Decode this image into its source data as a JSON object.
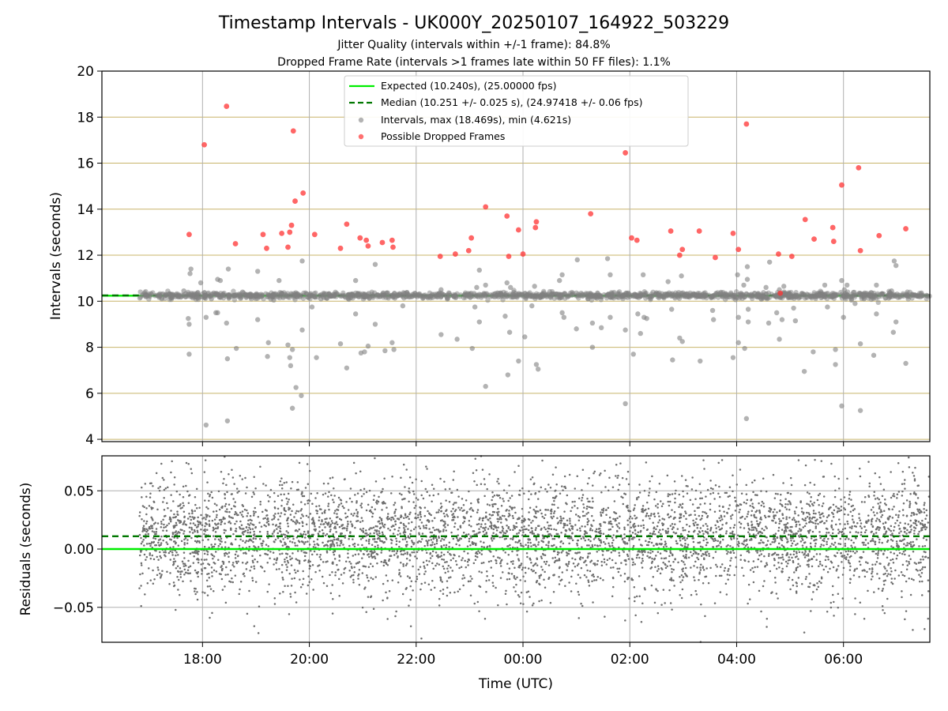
{
  "figure": {
    "title": "Timestamp Intervals - UK000Y_20250107_164922_503229",
    "subtitle_1": "Jitter Quality (intervals within +/-1 frame): 84.8%",
    "subtitle_2": "Dropped Frame Rate (intervals >1 frames late within 50 FF files): 1.1%"
  },
  "colors": {
    "expected": "#00ee00",
    "median": "#007700",
    "intervals": "#808080",
    "dropped": "#ff3333",
    "hgrid_top": "#c8b46a",
    "vgrid": "#b0b0b0"
  },
  "chart_data": [
    {
      "type": "scatter",
      "panel": "top",
      "ylabel": "Intervals (seconds)",
      "xlabel": "",
      "xlim": [
        "16:07",
        "07:37"
      ],
      "ylim": [
        3.9,
        20
      ],
      "yticks": [
        4,
        6,
        8,
        10,
        12,
        14,
        16,
        18,
        20
      ],
      "ytick_labels": [
        "4",
        "6",
        "8",
        "10",
        "12",
        "14",
        "16",
        "18",
        "20"
      ],
      "xticks": [
        "18:00",
        "20:00",
        "22:00",
        "00:00",
        "02:00",
        "04:00",
        "06:00"
      ],
      "grid": true,
      "legend_position": "upper-center",
      "legend": [
        {
          "label": "Expected (10.240s), (25.00000 fps)",
          "kind": "solid-line",
          "color": "#00ee00"
        },
        {
          "label": "Median (10.251 +/- 0.025 s), (24.97418 +/- 0.06 fps)",
          "kind": "dashed-line",
          "color": "#007700"
        },
        {
          "label": "Intervals, max (18.469s), min (4.621s)",
          "kind": "marker",
          "color": "#808080"
        },
        {
          "label": "Possible Dropped Frames",
          "kind": "marker",
          "color": "#ff3333"
        }
      ],
      "expected_interval": 10.24,
      "median_interval": 10.251,
      "series": [
        {
          "name": "Possible Dropped Frames",
          "points": [
            [
              "17:45",
              12.9
            ],
            [
              "18:02",
              16.8
            ],
            [
              "18:27",
              18.47
            ],
            [
              "18:37",
              12.5
            ],
            [
              "19:08",
              12.9
            ],
            [
              "19:12",
              12.3
            ],
            [
              "19:29",
              12.95
            ],
            [
              "19:36",
              12.35
            ],
            [
              "19:38",
              13.0
            ],
            [
              "19:40",
              13.3
            ],
            [
              "19:42",
              17.4
            ],
            [
              "19:44",
              14.35
            ],
            [
              "19:53",
              14.7
            ],
            [
              "20:06",
              12.9
            ],
            [
              "20:35",
              12.3
            ],
            [
              "20:42",
              13.35
            ],
            [
              "20:57",
              12.75
            ],
            [
              "21:04",
              12.65
            ],
            [
              "21:06",
              12.4
            ],
            [
              "21:22",
              12.55
            ],
            [
              "21:33",
              12.65
            ],
            [
              "21:34",
              12.35
            ],
            [
              "22:27",
              11.95
            ],
            [
              "22:44",
              12.05
            ],
            [
              "22:59",
              12.2
            ],
            [
              "23:02",
              12.75
            ],
            [
              "23:18",
              14.1
            ],
            [
              "23:42",
              13.7
            ],
            [
              "23:44",
              11.95
            ],
            [
              "23:55",
              13.1
            ],
            [
              "00:00",
              12.05
            ],
            [
              "00:14",
              13.2
            ],
            [
              "00:15",
              13.45
            ],
            [
              "01:16",
              13.8
            ],
            [
              "01:55",
              16.45
            ],
            [
              "02:02",
              12.75
            ],
            [
              "02:08",
              12.65
            ],
            [
              "02:46",
              13.05
            ],
            [
              "02:56",
              12.0
            ],
            [
              "02:59",
              12.25
            ],
            [
              "03:18",
              13.05
            ],
            [
              "03:36",
              11.9
            ],
            [
              "03:56",
              12.95
            ],
            [
              "04:02",
              12.25
            ],
            [
              "04:11",
              17.7
            ],
            [
              "04:47",
              12.05
            ],
            [
              "04:49",
              10.35
            ],
            [
              "05:02",
              11.95
            ],
            [
              "05:17",
              13.55
            ],
            [
              "05:27",
              12.7
            ],
            [
              "05:48",
              13.2
            ],
            [
              "05:49",
              12.6
            ],
            [
              "05:58",
              15.05
            ],
            [
              "06:17",
              15.8
            ],
            [
              "06:19",
              12.2
            ],
            [
              "06:40",
              12.85
            ],
            [
              "07:10",
              13.15
            ]
          ]
        },
        {
          "name": "Intervals",
          "points": [
            [
              "17:39",
              10.45
            ],
            [
              "17:44",
              9.25
            ],
            [
              "17:45",
              9.0
            ],
            [
              "17:46",
              11.2
            ],
            [
              "17:47",
              11.4
            ],
            [
              "17:48",
              10.2
            ],
            [
              "17:45",
              7.7
            ],
            [
              "17:55",
              10.15
            ],
            [
              "17:58",
              10.8
            ],
            [
              "18:04",
              9.3
            ],
            [
              "18:04",
              4.62
            ],
            [
              "18:10",
              10.1
            ],
            [
              "18:15",
              9.5
            ],
            [
              "18:17",
              9.5
            ],
            [
              "18:17",
              10.95
            ],
            [
              "18:20",
              10.9
            ],
            [
              "18:27",
              9.05
            ],
            [
              "18:28",
              7.5
            ],
            [
              "18:29",
              11.4
            ],
            [
              "18:28",
              4.8
            ],
            [
              "18:38",
              7.95
            ],
            [
              "18:45",
              10.4
            ],
            [
              "18:53",
              10.3
            ],
            [
              "19:02",
              11.3
            ],
            [
              "19:02",
              9.2
            ],
            [
              "19:13",
              7.6
            ],
            [
              "19:14",
              8.2
            ],
            [
              "19:20",
              10.05
            ],
            [
              "19:26",
              10.9
            ],
            [
              "19:36",
              8.1
            ],
            [
              "19:38",
              7.55
            ],
            [
              "19:39",
              7.2
            ],
            [
              "19:41",
              7.9
            ],
            [
              "19:41",
              5.35
            ],
            [
              "19:45",
              6.25
            ],
            [
              "19:51",
              5.9
            ],
            [
              "19:52",
              11.75
            ],
            [
              "19:52",
              8.75
            ],
            [
              "20:03",
              9.75
            ],
            [
              "20:08",
              7.55
            ],
            [
              "20:13",
              10.1
            ],
            [
              "20:35",
              8.15
            ],
            [
              "20:42",
              7.1
            ],
            [
              "20:52",
              10.9
            ],
            [
              "20:52",
              9.45
            ],
            [
              "20:58",
              7.75
            ],
            [
              "21:02",
              7.8
            ],
            [
              "21:06",
              8.05
            ],
            [
              "21:14",
              11.6
            ],
            [
              "21:14",
              9.0
            ],
            [
              "21:25",
              7.85
            ],
            [
              "21:33",
              8.2
            ],
            [
              "21:35",
              7.9
            ],
            [
              "21:45",
              9.8
            ],
            [
              "22:28",
              8.55
            ],
            [
              "22:28",
              10.5
            ],
            [
              "22:46",
              8.35
            ],
            [
              "22:55",
              10.3
            ],
            [
              "23:03",
              7.95
            ],
            [
              "23:06",
              9.75
            ],
            [
              "23:08",
              10.6
            ],
            [
              "23:11",
              11.35
            ],
            [
              "23:11",
              9.1
            ],
            [
              "23:18",
              6.3
            ],
            [
              "23:18",
              10.7
            ],
            [
              "23:40",
              9.35
            ],
            [
              "23:42",
              10.8
            ],
            [
              "23:43",
              6.8
            ],
            [
              "23:45",
              8.65
            ],
            [
              "23:46",
              10.6
            ],
            [
              "23:58",
              10.3
            ],
            [
              "23:55",
              7.4
            ],
            [
              "00:02",
              8.45
            ],
            [
              "00:10",
              9.8
            ],
            [
              "00:13",
              10.65
            ],
            [
              "00:15",
              7.25
            ],
            [
              "00:17",
              7.05
            ],
            [
              "00:41",
              10.9
            ],
            [
              "00:44",
              11.15
            ],
            [
              "00:44",
              9.5
            ],
            [
              "00:46",
              9.3
            ],
            [
              "01:00",
              8.8
            ],
            [
              "01:01",
              11.8
            ],
            [
              "01:13",
              10.1
            ],
            [
              "01:18",
              9.05
            ],
            [
              "01:18",
              8.0
            ],
            [
              "01:28",
              8.85
            ],
            [
              "01:35",
              11.85
            ],
            [
              "01:38",
              11.15
            ],
            [
              "01:38",
              9.3
            ],
            [
              "01:55",
              5.55
            ],
            [
              "01:55",
              8.75
            ],
            [
              "02:00",
              10.2
            ],
            [
              "02:04",
              7.7
            ],
            [
              "02:09",
              9.45
            ],
            [
              "02:12",
              8.6
            ],
            [
              "02:15",
              11.15
            ],
            [
              "02:16",
              9.3
            ],
            [
              "02:19",
              9.25
            ],
            [
              "02:43",
              10.85
            ],
            [
              "02:48",
              10.25
            ],
            [
              "02:47",
              9.65
            ],
            [
              "02:48",
              7.45
            ],
            [
              "02:56",
              8.4
            ],
            [
              "02:58",
              11.1
            ],
            [
              "02:59",
              8.25
            ],
            [
              "03:16",
              10.2
            ],
            [
              "03:19",
              7.4
            ],
            [
              "03:33",
              9.6
            ],
            [
              "03:34",
              9.2
            ],
            [
              "03:40",
              10.3
            ],
            [
              "03:56",
              7.55
            ],
            [
              "04:00",
              10.15
            ],
            [
              "04:01",
              11.15
            ],
            [
              "04:02",
              9.3
            ],
            [
              "04:02",
              8.2
            ],
            [
              "04:08",
              10.7
            ],
            [
              "04:09",
              7.95
            ],
            [
              "04:11",
              4.9
            ],
            [
              "04:12",
              10.95
            ],
            [
              "04:12",
              11.5
            ],
            [
              "04:13",
              9.65
            ],
            [
              "04:13",
              9.1
            ],
            [
              "04:33",
              10.6
            ],
            [
              "04:36",
              9.05
            ],
            [
              "04:37",
              11.7
            ],
            [
              "04:45",
              9.5
            ],
            [
              "04:48",
              10.5
            ],
            [
              "04:48",
              8.35
            ],
            [
              "04:51",
              9.2
            ],
            [
              "04:53",
              10.65
            ],
            [
              "04:58",
              10.15
            ],
            [
              "05:04",
              9.7
            ],
            [
              "05:06",
              9.15
            ],
            [
              "05:16",
              6.95
            ],
            [
              "05:26",
              7.8
            ],
            [
              "05:35",
              10.15
            ],
            [
              "05:39",
              10.7
            ],
            [
              "05:42",
              9.75
            ],
            [
              "05:51",
              7.25
            ],
            [
              "05:51",
              7.9
            ],
            [
              "05:58",
              10.9
            ],
            [
              "06:00",
              9.3
            ],
            [
              "06:01",
              10.5
            ],
            [
              "05:58",
              5.45
            ],
            [
              "06:04",
              10.7
            ],
            [
              "06:09",
              10.05
            ],
            [
              "06:13",
              9.9
            ],
            [
              "06:19",
              5.25
            ],
            [
              "06:19",
              8.15
            ],
            [
              "06:24",
              10.3
            ],
            [
              "06:34",
              7.65
            ],
            [
              "06:37",
              10.7
            ],
            [
              "06:37",
              9.45
            ],
            [
              "06:54",
              10.45
            ],
            [
              "06:56",
              8.65
            ],
            [
              "06:57",
              11.75
            ],
            [
              "06:59",
              11.55
            ],
            [
              "06:59",
              9.1
            ],
            [
              "07:10",
              7.3
            ]
          ]
        }
      ]
    },
    {
      "type": "scatter",
      "panel": "bottom",
      "ylabel": "Residuals (seconds)",
      "xlabel": "Time (UTC)",
      "xlim": [
        "16:07",
        "07:37"
      ],
      "ylim": [
        -0.08,
        0.08
      ],
      "yticks": [
        -0.05,
        0.0,
        0.05
      ],
      "ytick_labels": [
        "−0.05",
        "0.00",
        "0.05"
      ],
      "xticks": [
        "18:00",
        "20:00",
        "22:00",
        "00:00",
        "02:00",
        "04:00",
        "06:00"
      ],
      "xtick_labels": [
        "18:00",
        "20:00",
        "22:00",
        "00:00",
        "02:00",
        "04:00",
        "06:00"
      ],
      "grid": true,
      "expected_residual": 0.0,
      "median_residual": 0.011,
      "series": [
        {
          "name": "Residuals",
          "start": "16:49",
          "end": "07:37",
          "count": 4900,
          "center": 0.011,
          "spread": 0.025,
          "range": [
            -0.08,
            0.08
          ]
        }
      ]
    }
  ]
}
